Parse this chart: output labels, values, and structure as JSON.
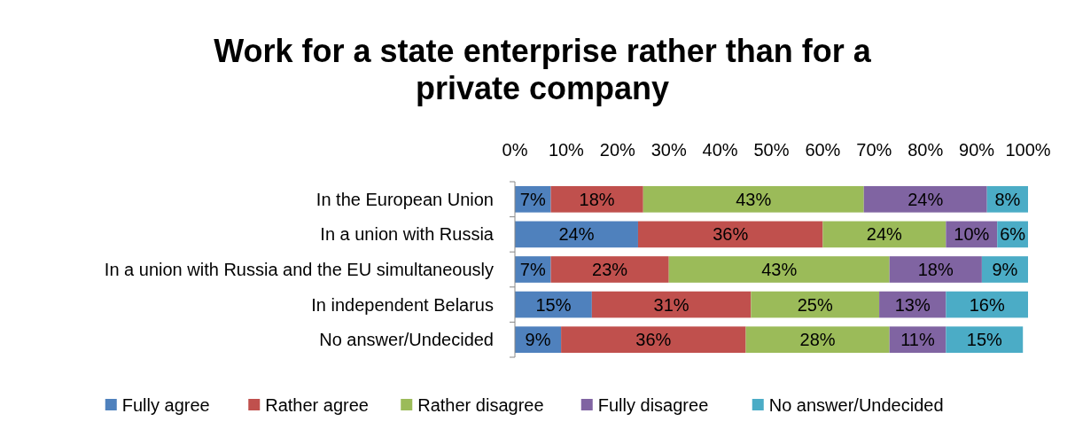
{
  "chart_data": {
    "type": "bar",
    "title": "Work for a state enterprise rather than for a private company",
    "orientation": "horizontal",
    "stacked": true,
    "categories": [
      "In the European Union",
      "In a union with Russia",
      "In a union with Russia and the EU simultaneously",
      "In independent Belarus",
      "No answer/Undecided"
    ],
    "series": [
      {
        "name": "Fully agree",
        "color": "#4f81bd",
        "values": [
          7,
          24,
          7,
          15,
          9
        ],
        "value_labels": [
          "7%",
          "24%",
          "7%",
          "15%",
          "9%"
        ]
      },
      {
        "name": "Rather agree",
        "color": "#c0504d",
        "values": [
          18,
          36,
          23,
          31,
          36
        ],
        "value_labels": [
          "18%",
          "36%",
          "23%",
          "31%",
          "36%"
        ]
      },
      {
        "name": "Rather disagree",
        "color": "#9bbb59",
        "values": [
          43,
          24,
          43,
          25,
          28
        ],
        "value_labels": [
          "43%",
          "24%",
          "43%",
          "25%",
          "28%"
        ]
      },
      {
        "name": "Fully disagree",
        "color": "#8064a2",
        "values": [
          24,
          10,
          18,
          13,
          11
        ],
        "value_labels": [
          "24%",
          "10%",
          "18%",
          "13%",
          "11%"
        ]
      },
      {
        "name": "No answer/Undecided",
        "color": "#4bacc6",
        "values": [
          8,
          6,
          9,
          16,
          15
        ],
        "value_labels": [
          "8%",
          "6%",
          "9%",
          "16%",
          "15%"
        ]
      }
    ],
    "xlim": [
      0,
      100
    ],
    "xticks": [
      {
        "value": 0,
        "label": "0%"
      },
      {
        "value": 10,
        "label": "10%"
      },
      {
        "value": 20,
        "label": "20%"
      },
      {
        "value": 30,
        "label": "30%"
      },
      {
        "value": 40,
        "label": "40%"
      },
      {
        "value": 50,
        "label": "50%"
      },
      {
        "value": 60,
        "label": "60%"
      },
      {
        "value": 70,
        "label": "70%"
      },
      {
        "value": 80,
        "label": "80%"
      },
      {
        "value": 90,
        "label": "90%"
      },
      {
        "value": 100,
        "label": "100%"
      }
    ],
    "legend": "bottom",
    "grid": false
  }
}
